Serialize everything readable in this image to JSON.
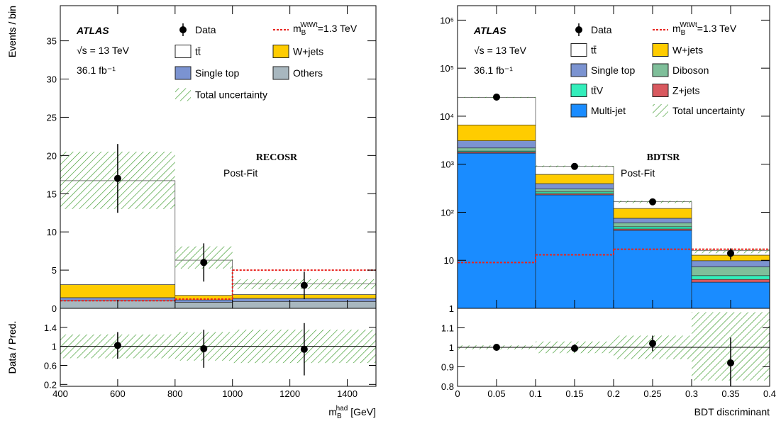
{
  "chart_data": [
    {
      "type": "histogram",
      "stacked": true,
      "log_y": false,
      "experiment": "ATLAS",
      "energy": "√s = 13 TeV",
      "luminosity": "36.1 fb⁻¹",
      "region": "RECOSR",
      "fit": "Post-Fit",
      "y_label": "Events / bin",
      "x_label": {
        "main": "m",
        "sub": "B",
        "sup": "had",
        "rest": " [GeV]"
      },
      "bins": [
        400,
        800,
        1000,
        1500
      ],
      "xlim": [
        400,
        1500
      ],
      "xticks": [
        400,
        600,
        800,
        1000,
        1200,
        1400
      ],
      "ylim": [
        0,
        39.6
      ],
      "yticks": [
        0,
        5,
        10,
        15,
        20,
        25,
        30,
        35
      ],
      "series": [
        {
          "name": "tt̄",
          "color": "#ffffff",
          "values": [
            13.6,
            4.6,
            1.4
          ]
        },
        {
          "name": "W+jets",
          "color": "#ffcc00",
          "values": [
            1.7,
            0.6,
            0.5
          ]
        },
        {
          "name": "Single top",
          "color": "#7b93d1",
          "values": [
            0.4,
            0.3,
            0.4
          ]
        },
        {
          "name": "Others",
          "color": "#a8b7bf",
          "values": [
            1.0,
            0.8,
            0.9
          ]
        }
      ],
      "signal": {
        "name": {
          "main": "m",
          "sub": "B",
          "sup": "WtWt",
          "rest": "=1.3 TeV"
        },
        "color": "#e8231f",
        "values": [
          1.0,
          1.2,
          5.0
        ]
      },
      "uncertainty": {
        "name": "Total uncertainty",
        "color": "#3a9a2a",
        "low": [
          13.0,
          5.2,
          2.5
        ],
        "high": [
          20.5,
          8.1,
          3.8
        ]
      },
      "data": {
        "name": "Data",
        "x": [
          600,
          900,
          1250
        ],
        "values": [
          17,
          6,
          3
        ],
        "errors": [
          4.5,
          2.5,
          1.8
        ]
      },
      "ratio": {
        "y_label": "Data / Pred.",
        "ylim": [
          0.16,
          1.8
        ],
        "yticks": [
          0.2,
          0.6,
          1,
          1.4
        ],
        "reference": 1,
        "values": [
          1.02,
          0.95,
          0.94
        ],
        "errors": [
          0.28,
          0.4,
          0.55
        ],
        "band_low": [
          0.75,
          0.7,
          0.65
        ],
        "band_high": [
          1.25,
          1.3,
          1.35
        ]
      }
    },
    {
      "type": "histogram",
      "stacked": true,
      "log_y": true,
      "experiment": "ATLAS",
      "energy": "√s = 13 TeV",
      "luminosity": "36.1 fb⁻¹",
      "region": "BDTSR",
      "fit": "Post-Fit",
      "y_label": "Events / bin",
      "x_label": {
        "main": "BDT discriminant"
      },
      "bins": [
        0,
        0.1,
        0.2,
        0.3,
        0.4
      ],
      "xlim": [
        0,
        0.4
      ],
      "xticks": [
        0,
        0.05,
        0.1,
        0.15,
        0.2,
        0.25,
        0.3,
        0.35,
        0.4
      ],
      "ylim": [
        1,
        2000000
      ],
      "yticks": [
        1,
        10,
        {
          "value": 100,
          "label": "10²"
        },
        {
          "value": 1000,
          "label": "10³"
        },
        {
          "value": 10000,
          "label": "10⁴"
        },
        {
          "value": 100000,
          "label": "10⁵"
        },
        {
          "value": 1000000,
          "label": "10⁶"
        }
      ],
      "series": [
        {
          "name": "tt̄",
          "color": "#ffffff",
          "values": [
            18000,
            290,
            45,
            3
          ]
        },
        {
          "name": "W+jets",
          "color": "#ffcc00",
          "values": [
            3500,
            220,
            45,
            3
          ]
        },
        {
          "name": "Single top",
          "color": "#7b93d1",
          "values": [
            900,
            90,
            15,
            2.5
          ]
        },
        {
          "name": "Diboson",
          "color": "#7fbf9a",
          "values": [
            300,
            40,
            10,
            2.5
          ]
        },
        {
          "name": "tt̄V",
          "color": "#33eebb",
          "values": [
            80,
            20,
            5,
            0.8
          ]
        },
        {
          "name": "Z+jets",
          "color": "#d9595f",
          "values": [
            100,
            15,
            3,
            0.5
          ]
        },
        {
          "name": "Multi-jet",
          "color": "#1a8cff",
          "values": [
            1700,
            230,
            42,
            3.5
          ]
        }
      ],
      "signal": {
        "name": {
          "main": "m",
          "sub": "B",
          "sup": "WtWt",
          "rest": "=1.3 TeV"
        },
        "color": "#e8231f",
        "values": [
          9,
          13,
          17,
          17
        ]
      },
      "uncertainty": {
        "name": "Total uncertainty",
        "color": "#3a9a2a",
        "low": [
          24000,
          870,
          155,
          14
        ],
        "high": [
          25200,
          940,
          175,
          17.5
        ]
      },
      "data": {
        "name": "Data",
        "x": [
          0.05,
          0.15,
          0.25,
          0.35
        ],
        "values": [
          25000,
          900,
          165,
          14
        ],
        "errors": [
          160,
          30,
          13,
          3.7
        ]
      },
      "ratio": {
        "y_label": "Data / Pred.",
        "ylim": [
          0.8,
          1.2
        ],
        "yticks": [
          0.8,
          0.9,
          1,
          1.1
        ],
        "reference": 1,
        "values": [
          1.0,
          0.995,
          1.02,
          0.92
        ],
        "errors": [
          0.006,
          0.02,
          0.04,
          0.13
        ],
        "band_low": [
          0.99,
          0.97,
          0.94,
          0.83
        ],
        "band_high": [
          1.01,
          1.03,
          1.06,
          1.18
        ]
      }
    }
  ]
}
